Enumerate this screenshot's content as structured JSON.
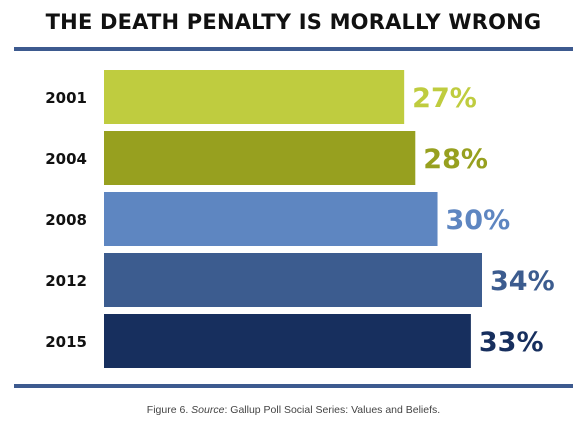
{
  "chart_data": {
    "type": "bar",
    "orientation": "horizontal",
    "title": "THE DEATH PENALTY IS MORALLY WRONG",
    "categories": [
      "2001",
      "2004",
      "2008",
      "2012",
      "2015"
    ],
    "values": [
      27,
      28,
      30,
      34,
      33
    ],
    "value_labels": [
      "27%",
      "28%",
      "30%",
      "34%",
      "33%"
    ],
    "unit": "%",
    "xlim": [
      0,
      34
    ],
    "grid": false,
    "legend": "none",
    "bar_colors": [
      "#bfcc3f",
      "#97a01f",
      "#5e86c1",
      "#3c5c8f",
      "#172f5e"
    ],
    "label_colors": [
      "#bfcc3f",
      "#97a01f",
      "#5e86c1",
      "#3c5c8f",
      "#172f5e"
    ]
  },
  "caption": {
    "prefix": "Figure 6. ",
    "source_label": "Source",
    "suffix": ": Gallup Poll Social Series: Values and Beliefs."
  },
  "colors": {
    "rule": "#3d5a8f",
    "title": "#111111"
  }
}
